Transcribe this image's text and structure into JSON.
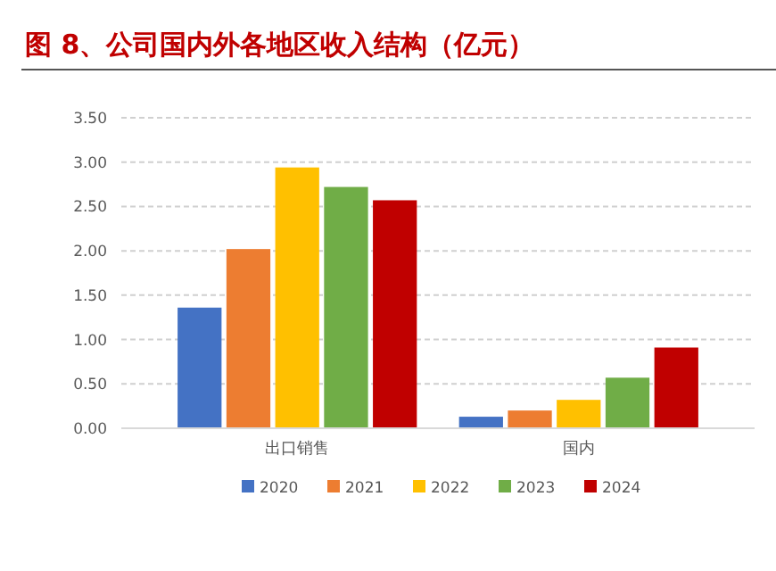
{
  "chart_data": {
    "type": "bar",
    "title": "图 8、公司国内外各地区收入结构（亿元）",
    "categories": [
      "出口销售",
      "国内"
    ],
    "series": [
      {
        "name": "2020",
        "color": "#4472c4",
        "values": [
          1.36,
          0.13
        ]
      },
      {
        "name": "2021",
        "color": "#ed7d31",
        "values": [
          2.02,
          0.2
        ]
      },
      {
        "name": "2022",
        "color": "#ffc000",
        "values": [
          2.94,
          0.32
        ]
      },
      {
        "name": "2023",
        "color": "#70ad47",
        "values": [
          2.72,
          0.57
        ]
      },
      {
        "name": "2024",
        "color": "#c00000",
        "values": [
          2.57,
          0.91
        ]
      }
    ],
    "ylim": [
      0,
      3.5
    ],
    "yticks": [
      {
        "value": 0,
        "label": "0.00"
      },
      {
        "value": 0.5,
        "label": "0.50"
      },
      {
        "value": 1,
        "label": "1.00"
      },
      {
        "value": 1.5,
        "label": "1.50"
      },
      {
        "value": 2,
        "label": "2.00"
      },
      {
        "value": 2.5,
        "label": "2.50"
      },
      {
        "value": 3,
        "label": "3.00"
      },
      {
        "value": 3.5,
        "label": "3.50"
      }
    ],
    "grid": "y",
    "legend": "bottom"
  }
}
